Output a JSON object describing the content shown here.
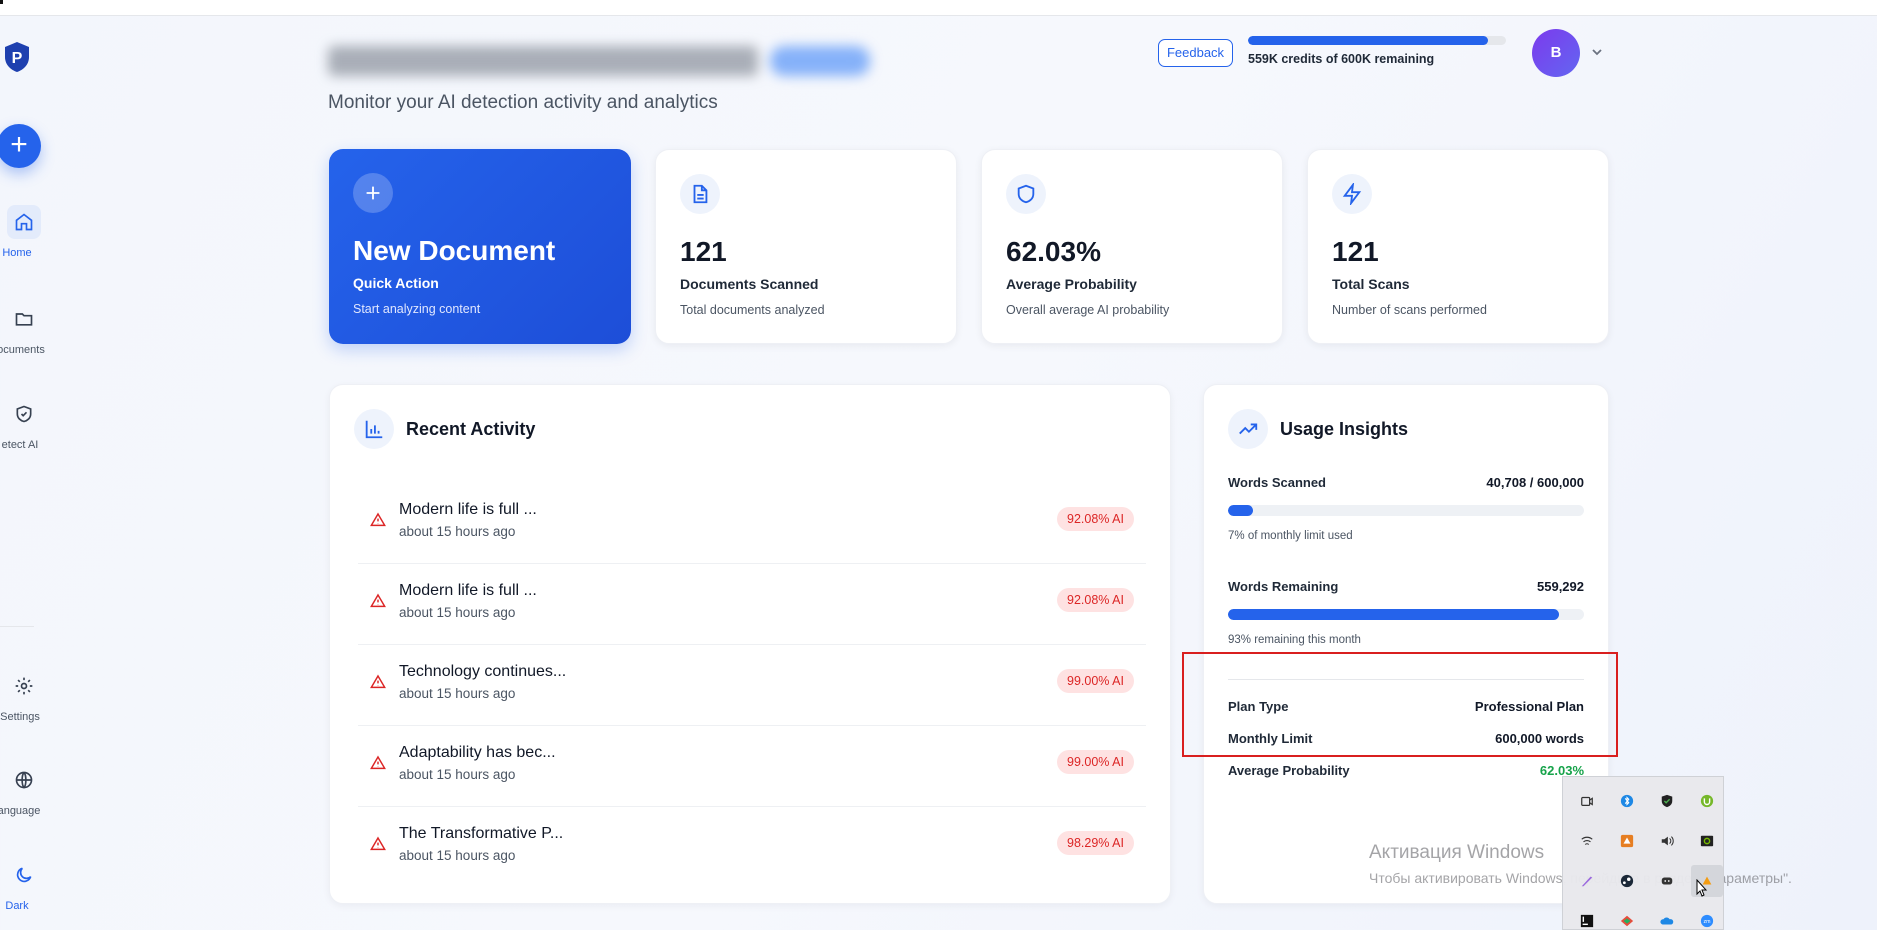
{
  "sidebar": {
    "items": [
      {
        "label": "Home",
        "icon": "home-icon",
        "active": true
      },
      {
        "label": "ocuments",
        "icon": "folder-icon"
      },
      {
        "label": "etect AI",
        "icon": "shield-check-icon"
      },
      {
        "label": "Settings",
        "icon": "gear-icon"
      },
      {
        "label": "anguage",
        "icon": "globe-icon"
      },
      {
        "label": "Dark",
        "icon": "moon-icon",
        "active": true
      }
    ],
    "fab_label": "+"
  },
  "header": {
    "subtitle": "Monitor your AI detection activity and analytics",
    "feedback_label": "Feedback",
    "credits_text": "559K credits of 600K remaining",
    "credits_fraction": 0.93,
    "avatar_initial": "B"
  },
  "cards": [
    {
      "big": "New Document",
      "label": "Quick Action",
      "sub": "Start analyzing content",
      "icon": "plus-circle-icon"
    },
    {
      "big": "121",
      "label": "Documents Scanned",
      "sub": "Total documents analyzed",
      "icon": "document-icon"
    },
    {
      "big": "62.03%",
      "label": "Average Probability",
      "sub": "Overall average AI probability",
      "icon": "shield-icon"
    },
    {
      "big": "121",
      "label": "Total Scans",
      "sub": "Number of scans performed",
      "icon": "lightning-icon"
    }
  ],
  "recent_activity": {
    "title": "Recent Activity",
    "items": [
      {
        "title": "Modern life is full ...",
        "time": "about 15 hours ago",
        "badge": "92.08% AI"
      },
      {
        "title": "Modern life is full ...",
        "time": "about 15 hours ago",
        "badge": "92.08% AI"
      },
      {
        "title": "Technology continues...",
        "time": "about 15 hours ago",
        "badge": "99.00% AI"
      },
      {
        "title": "Adaptability has bec...",
        "time": "about 15 hours ago",
        "badge": "99.00% AI"
      },
      {
        "title": "The Transformative P...",
        "time": "about 15 hours ago",
        "badge": "98.29% AI"
      }
    ]
  },
  "usage_insights": {
    "title": "Usage Insights",
    "words_scanned_label": "Words Scanned",
    "words_scanned_value": "40,708 / 600,000",
    "words_scanned_fraction": 0.07,
    "words_scanned_note": "7% of monthly limit used",
    "words_remaining_label": "Words Remaining",
    "words_remaining_value": "559,292",
    "words_remaining_fraction": 0.93,
    "words_remaining_note": "93% remaining this month",
    "plan_type_label": "Plan Type",
    "plan_type_value": "Professional Plan",
    "monthly_limit_label": "Monthly Limit",
    "monthly_limit_value": "600,000 words",
    "avg_prob_label": "Average Probability",
    "avg_prob_value": "62.03%"
  },
  "colors": {
    "accent": "#2563eb",
    "danger": "#dc2626",
    "success": "#16a34a",
    "highlight": "#d91f1f"
  },
  "os_overlay": {
    "activation_title": "Активация Windows",
    "activation_text": "Чтобы активировать Windows, перейдите в раздел \"Параметры\".",
    "tray_icons": [
      "camera-icon",
      "bluetooth-icon",
      "security-icon",
      "torrent-icon",
      "network-icon",
      "app-icon",
      "volume-icon",
      "nvidia-icon",
      "pen-icon",
      "steam-icon",
      "discord-icon",
      "app-orange-icon",
      "jetbrains-icon",
      "maps-icon",
      "onedrive-icon",
      "zoom-icon"
    ],
    "tray_zoom_text": "zm"
  }
}
